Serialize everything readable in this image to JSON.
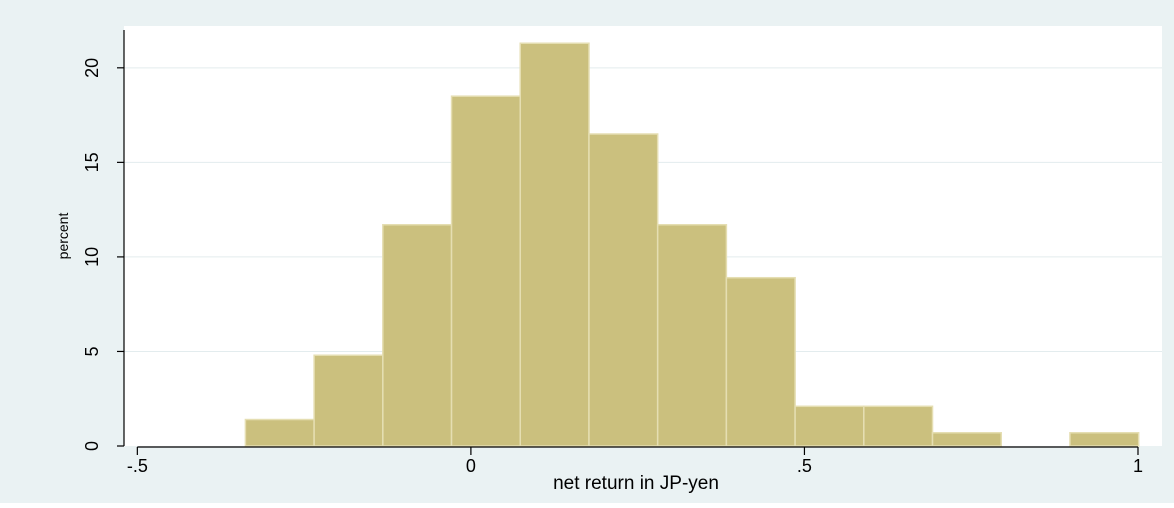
{
  "colors": {
    "outer_background": "#eaf2f3",
    "plot_background": "#ffffff",
    "bar_fill": "#cbc07e",
    "bar_edge": "#e5deb2",
    "gridline": "#e3ecee",
    "axis": "#000000"
  },
  "chart_data": {
    "type": "bar",
    "subtype": "histogram",
    "title": "",
    "xlabel": "net return in JP-yen",
    "ylabel": "percent",
    "xlim": [
      -0.52,
      1.015
    ],
    "ylim": [
      0,
      22
    ],
    "grid": true,
    "legend": "none",
    "x_ticks": [
      {
        "value": -0.5,
        "label": "-.5"
      },
      {
        "value": 0,
        "label": "0"
      },
      {
        "value": 0.5,
        "label": ".5"
      },
      {
        "value": 1,
        "label": "1"
      }
    ],
    "y_ticks": [
      {
        "value": 0,
        "label": "0"
      },
      {
        "value": 5,
        "label": "5"
      },
      {
        "value": 10,
        "label": "10"
      },
      {
        "value": 15,
        "label": "15"
      },
      {
        "value": 20,
        "label": "20"
      }
    ],
    "bins": [
      {
        "start": -0.338,
        "end": -0.235,
        "value": 1.4
      },
      {
        "start": -0.235,
        "end": -0.132,
        "value": 4.8
      },
      {
        "start": -0.132,
        "end": -0.029,
        "value": 11.7
      },
      {
        "start": -0.029,
        "end": 0.074,
        "value": 18.5
      },
      {
        "start": 0.074,
        "end": 0.177,
        "value": 21.3
      },
      {
        "start": 0.177,
        "end": 0.28,
        "value": 16.5
      },
      {
        "start": 0.28,
        "end": 0.383,
        "value": 11.7
      },
      {
        "start": 0.383,
        "end": 0.486,
        "value": 8.9
      },
      {
        "start": 0.486,
        "end": 0.589,
        "value": 2.1
      },
      {
        "start": 0.589,
        "end": 0.692,
        "value": 2.1
      },
      {
        "start": 0.692,
        "end": 0.795,
        "value": 0.7
      },
      {
        "start": 0.795,
        "end": 0.898,
        "value": 0
      },
      {
        "start": 0.898,
        "end": 1.001,
        "value": 0.7
      }
    ]
  }
}
